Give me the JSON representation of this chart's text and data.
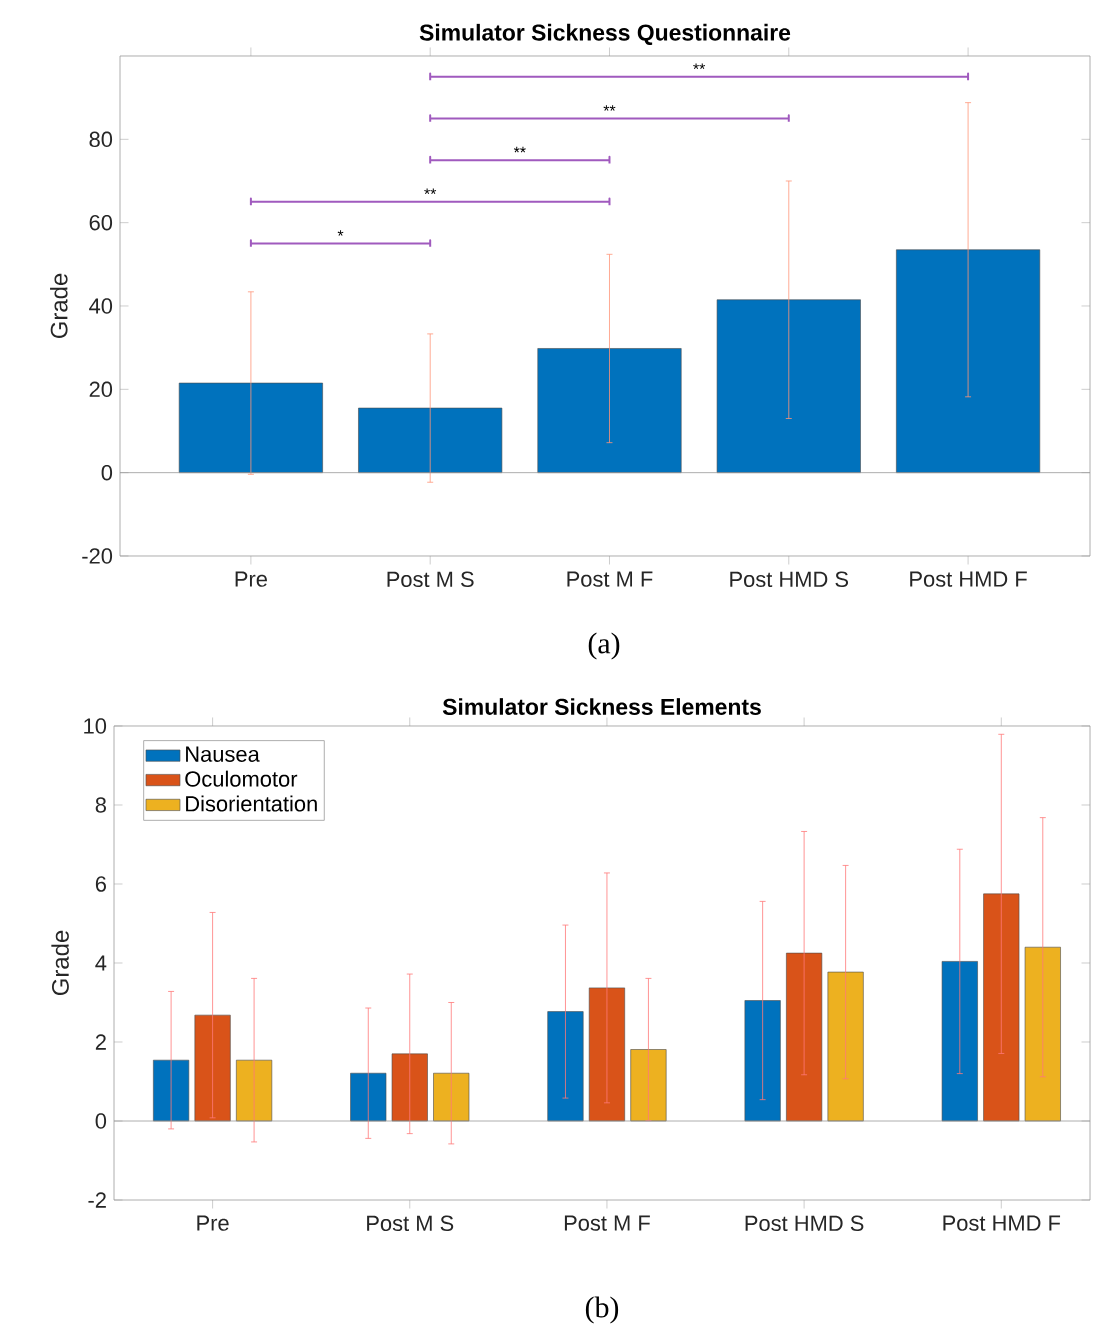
{
  "chart_data": [
    {
      "type": "bar",
      "title": "Simulator Sickness Questionnaire",
      "ylabel": "Grade",
      "categories": [
        "Pre",
        "Post M S",
        "Post M F",
        "Post HMD S",
        "Post HMD F"
      ],
      "values": [
        21.5,
        15.5,
        29.8,
        41.5,
        53.5
      ],
      "errors": [
        21.9,
        17.8,
        22.6,
        28.5,
        35.3
      ],
      "color": "#0072bd",
      "ylim": [
        -20,
        100
      ],
      "yticks": [
        -20,
        0,
        20,
        40,
        60,
        80
      ],
      "annotations": [
        "*",
        "**",
        "**",
        "**",
        "**",
        "(a)"
      ]
    },
    {
      "type": "bar",
      "title": "Simulator Sickness Elements",
      "ylabel": "Grade",
      "categories": [
        "Pre",
        "Post M S",
        "Post M F",
        "Post HMD S",
        "Post HMD F"
      ],
      "series": [
        {
          "name": "Nausea",
          "color": "#0072bd",
          "values": [
            1.54,
            1.21,
            2.77,
            3.05,
            4.04
          ],
          "errors": [
            1.74,
            1.65,
            2.19,
            2.51,
            2.84
          ]
        },
        {
          "name": "Oculomotor",
          "color": "#d95319",
          "values": [
            2.68,
            1.7,
            3.37,
            4.25,
            5.75
          ],
          "errors": [
            2.6,
            2.02,
            2.91,
            3.08,
            4.04
          ]
        },
        {
          "name": "Disorientation",
          "color": "#edb120",
          "values": [
            1.54,
            1.21,
            1.81,
            3.77,
            4.4
          ],
          "errors": [
            2.07,
            1.79,
            1.8,
            2.7,
            3.28
          ]
        }
      ],
      "ylim": [
        -2,
        10
      ],
      "yticks": [
        -2,
        0,
        2,
        4,
        6,
        8,
        10
      ],
      "legend": "top left",
      "annotations": [
        "(b)"
      ]
    }
  ]
}
